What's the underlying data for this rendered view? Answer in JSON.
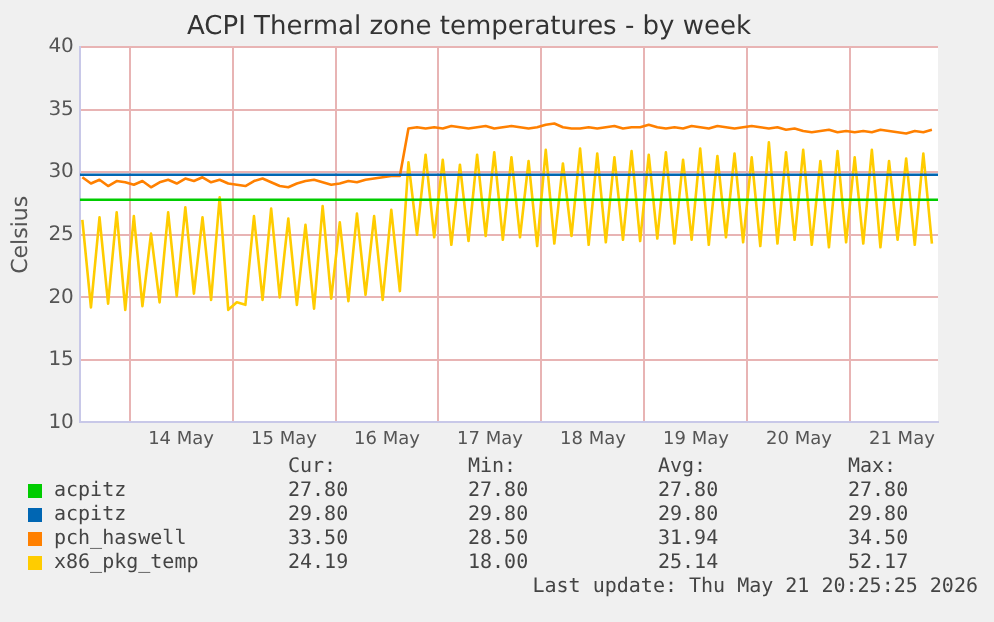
{
  "chart_data": {
    "type": "line",
    "title": "ACPI Thermal zone temperatures - by week",
    "ylabel": "Celsius",
    "x": [
      "2026-05-13T13:00",
      "2026-05-13T15:00",
      "2026-05-13T17:00",
      "2026-05-13T19:00",
      "2026-05-13T21:00",
      "2026-05-13T23:00",
      "2026-05-14T01:00",
      "2026-05-14T03:00",
      "2026-05-14T05:00",
      "2026-05-14T07:00",
      "2026-05-14T09:00",
      "2026-05-14T11:00",
      "2026-05-14T13:00",
      "2026-05-14T15:00",
      "2026-05-14T17:00",
      "2026-05-14T19:00",
      "2026-05-14T21:00",
      "2026-05-14T23:00",
      "2026-05-15T01:00",
      "2026-05-15T03:00",
      "2026-05-15T05:00",
      "2026-05-15T07:00",
      "2026-05-15T09:00",
      "2026-05-15T11:00",
      "2026-05-15T13:00",
      "2026-05-15T15:00",
      "2026-05-15T17:00",
      "2026-05-15T19:00",
      "2026-05-15T21:00",
      "2026-05-15T23:00",
      "2026-05-16T01:00",
      "2026-05-16T03:00",
      "2026-05-16T05:00",
      "2026-05-16T07:00",
      "2026-05-16T09:00",
      "2026-05-16T11:00",
      "2026-05-16T13:00",
      "2026-05-16T15:00",
      "2026-05-16T17:00",
      "2026-05-16T19:00",
      "2026-05-16T21:00",
      "2026-05-16T23:00",
      "2026-05-17T01:00",
      "2026-05-17T03:00",
      "2026-05-17T05:00",
      "2026-05-17T07:00",
      "2026-05-17T09:00",
      "2026-05-17T11:00",
      "2026-05-17T13:00",
      "2026-05-17T15:00",
      "2026-05-17T17:00",
      "2026-05-17T19:00",
      "2026-05-17T21:00",
      "2026-05-17T23:00",
      "2026-05-18T01:00",
      "2026-05-18T03:00",
      "2026-05-18T05:00",
      "2026-05-18T07:00",
      "2026-05-18T09:00",
      "2026-05-18T11:00",
      "2026-05-18T13:00",
      "2026-05-18T15:00",
      "2026-05-18T17:00",
      "2026-05-18T19:00",
      "2026-05-18T21:00",
      "2026-05-18T23:00",
      "2026-05-19T01:00",
      "2026-05-19T03:00",
      "2026-05-19T05:00",
      "2026-05-19T07:00",
      "2026-05-19T09:00",
      "2026-05-19T11:00",
      "2026-05-19T13:00",
      "2026-05-19T15:00",
      "2026-05-19T17:00",
      "2026-05-19T19:00",
      "2026-05-19T21:00",
      "2026-05-19T23:00",
      "2026-05-20T01:00",
      "2026-05-20T03:00",
      "2026-05-20T05:00",
      "2026-05-20T07:00",
      "2026-05-20T09:00",
      "2026-05-20T11:00",
      "2026-05-20T13:00",
      "2026-05-20T15:00",
      "2026-05-20T17:00",
      "2026-05-20T19:00",
      "2026-05-20T21:00",
      "2026-05-20T23:00",
      "2026-05-21T01:00",
      "2026-05-21T03:00",
      "2026-05-21T05:00",
      "2026-05-21T07:00",
      "2026-05-21T09:00",
      "2026-05-21T11:00",
      "2026-05-21T13:00",
      "2026-05-21T15:00",
      "2026-05-21T17:00",
      "2026-05-21T19:00"
    ],
    "series": [
      {
        "name": "acpitz",
        "color": "#00cc00",
        "x": [
          "2026-05-13T12:25",
          "2026-05-21T20:25"
        ],
        "values": [
          27.8,
          27.8
        ]
      },
      {
        "name": "acpitz",
        "color": "#0066b3",
        "x": [
          "2026-05-13T12:25",
          "2026-05-21T20:25"
        ],
        "values": [
          29.8,
          29.8
        ]
      },
      {
        "name": "pch_haswell",
        "color": "#ff8000",
        "values": [
          29.6,
          29.1,
          29.4,
          28.9,
          29.3,
          29.2,
          29.0,
          29.3,
          28.8,
          29.2,
          29.4,
          29.1,
          29.5,
          29.3,
          29.6,
          29.2,
          29.4,
          29.1,
          29.0,
          28.9,
          29.3,
          29.5,
          29.2,
          28.9,
          28.8,
          29.1,
          29.3,
          29.4,
          29.2,
          29.0,
          29.1,
          29.3,
          29.2,
          29.4,
          29.5,
          29.6,
          29.7,
          29.7,
          33.5,
          33.6,
          33.5,
          33.6,
          33.5,
          33.7,
          33.6,
          33.5,
          33.6,
          33.7,
          33.5,
          33.6,
          33.7,
          33.6,
          33.5,
          33.6,
          33.8,
          33.9,
          33.6,
          33.5,
          33.5,
          33.6,
          33.5,
          33.6,
          33.7,
          33.5,
          33.6,
          33.6,
          33.8,
          33.6,
          33.5,
          33.6,
          33.5,
          33.7,
          33.6,
          33.5,
          33.7,
          33.6,
          33.5,
          33.6,
          33.7,
          33.6,
          33.5,
          33.6,
          33.4,
          33.5,
          33.3,
          33.2,
          33.3,
          33.4,
          33.2,
          33.3,
          33.2,
          33.3,
          33.2,
          33.4,
          33.3,
          33.2,
          33.1,
          33.3,
          33.2,
          33.4
        ]
      },
      {
        "name": "x86_pkg_temp",
        "color": "#ffcc00",
        "values": [
          26.2,
          19.2,
          26.4,
          19.5,
          26.8,
          19.0,
          26.5,
          19.3,
          25.1,
          19.6,
          26.8,
          20.1,
          27.2,
          20.3,
          26.4,
          19.8,
          28.0,
          19.0,
          19.6,
          19.4,
          26.5,
          19.8,
          27.1,
          20.0,
          26.3,
          19.4,
          25.8,
          19.1,
          27.3,
          19.9,
          26.0,
          19.7,
          26.7,
          20.2,
          26.5,
          19.8,
          27.0,
          20.5,
          30.8,
          25.0,
          31.4,
          24.8,
          31.0,
          24.2,
          30.6,
          24.5,
          31.4,
          24.9,
          31.6,
          24.6,
          31.2,
          24.8,
          30.9,
          24.1,
          31.8,
          24.3,
          30.7,
          24.9,
          31.9,
          24.2,
          31.5,
          24.4,
          31.2,
          24.6,
          31.7,
          24.5,
          31.4,
          24.7,
          31.6,
          24.3,
          31.0,
          24.6,
          31.9,
          24.2,
          31.3,
          24.8,
          31.5,
          24.4,
          31.2,
          24.1,
          32.4,
          24.3,
          31.6,
          24.6,
          31.8,
          24.2,
          30.9,
          24.0,
          31.7,
          24.4,
          31.2,
          24.3,
          31.8,
          24.0,
          30.9,
          24.6,
          31.1,
          24.2,
          31.5,
          24.3
        ]
      }
    ],
    "xlim": [
      "2026-05-13T12:25",
      "2026-05-21T20:25"
    ],
    "xticks": [
      {
        "value": "2026-05-14T00:00",
        "label": null
      },
      {
        "value": "2026-05-14T12:00",
        "label": "14 May"
      },
      {
        "value": "2026-05-15T00:00",
        "label": null
      },
      {
        "value": "2026-05-15T12:00",
        "label": "15 May"
      },
      {
        "value": "2026-05-16T00:00",
        "label": null
      },
      {
        "value": "2026-05-16T12:00",
        "label": "16 May"
      },
      {
        "value": "2026-05-17T00:00",
        "label": null
      },
      {
        "value": "2026-05-17T12:00",
        "label": "17 May"
      },
      {
        "value": "2026-05-18T00:00",
        "label": null
      },
      {
        "value": "2026-05-18T12:00",
        "label": "18 May"
      },
      {
        "value": "2026-05-19T00:00",
        "label": null
      },
      {
        "value": "2026-05-19T12:00",
        "label": "19 May"
      },
      {
        "value": "2026-05-20T00:00",
        "label": null
      },
      {
        "value": "2026-05-20T12:00",
        "label": "20 May"
      },
      {
        "value": "2026-05-21T00:00",
        "label": null
      },
      {
        "value": "2026-05-21T12:00",
        "label": "21 May"
      }
    ],
    "ylim": [
      10,
      40
    ],
    "yticks": [
      10,
      15,
      20,
      25,
      30,
      35,
      40
    ],
    "grid": true,
    "legend": "bottom",
    "marker": "none",
    "line_style": "solid",
    "annotations": [
      "Cur:",
      "Min:",
      "Avg:",
      "Max:",
      "27.80",
      "27.80",
      "27.80",
      "27.80",
      "29.80",
      "29.80",
      "29.80",
      "29.80",
      "33.50",
      "28.50",
      "31.94",
      "34.50",
      "24.19",
      "18.00",
      "25.14",
      "52.17",
      "Last update: Thu May 21 20:25:25 2026"
    ]
  }
}
